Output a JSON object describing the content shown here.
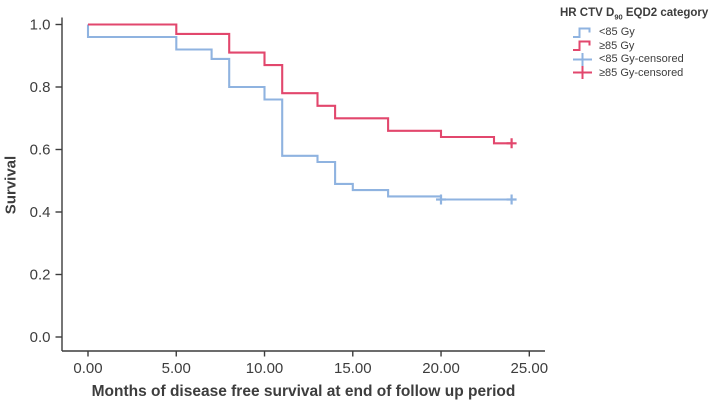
{
  "chart_data": {
    "type": "line",
    "chart_kind": "kaplan_meier_step",
    "title": "",
    "xlabel": "Months of disease free survival at end of follow up period",
    "ylabel": "Survival",
    "xlim": [
      0,
      25
    ],
    "ylim": [
      0.0,
      1.0
    ],
    "xticks": [
      "0.00",
      "5.00",
      "10.00",
      "15.00",
      "20.00",
      "25.00"
    ],
    "yticks": [
      "0.0",
      "0.2",
      "0.4",
      "0.6",
      "0.8",
      "1.0"
    ],
    "grid": false,
    "legend_position": "top-right-outside",
    "axis_color": "#3c3c3c",
    "text_color": "#3d3d3d",
    "legend_title": {
      "prefix": "HR CTV D",
      "sub": "90",
      "suffix": " EQD2 category"
    },
    "series": [
      {
        "name": "<85 Gy",
        "color": "#8fb3e0",
        "steps": [
          [
            0,
            1.0
          ],
          [
            0,
            0.96
          ],
          [
            5,
            0.92
          ],
          [
            7,
            0.89
          ],
          [
            8,
            0.8
          ],
          [
            10,
            0.76
          ],
          [
            11,
            0.58
          ],
          [
            13,
            0.56
          ],
          [
            14,
            0.49
          ],
          [
            15,
            0.47
          ],
          [
            17,
            0.45
          ],
          [
            20,
            0.44
          ],
          [
            24,
            0.44
          ]
        ],
        "censored": [
          [
            20,
            0.44
          ],
          [
            24,
            0.44
          ]
        ]
      },
      {
        "name": "≥85 Gy",
        "color": "#e2476d",
        "steps": [
          [
            0,
            1.0
          ],
          [
            5,
            0.97
          ],
          [
            8,
            0.91
          ],
          [
            10,
            0.87
          ],
          [
            11,
            0.78
          ],
          [
            13,
            0.74
          ],
          [
            14,
            0.7
          ],
          [
            17,
            0.66
          ],
          [
            20,
            0.64
          ],
          [
            23,
            0.62
          ],
          [
            24,
            0.62
          ]
        ],
        "censored": [
          [
            24,
            0.62
          ]
        ]
      }
    ],
    "legend_entries": [
      {
        "label": "<85 Gy",
        "glyph": "step",
        "series": 0
      },
      {
        "label": "≥85 Gy",
        "glyph": "step",
        "series": 1
      },
      {
        "label": "<85 Gy-censored",
        "glyph": "plus",
        "series": 0
      },
      {
        "label": "≥85 Gy-censored",
        "glyph": "plus",
        "series": 1
      }
    ]
  }
}
